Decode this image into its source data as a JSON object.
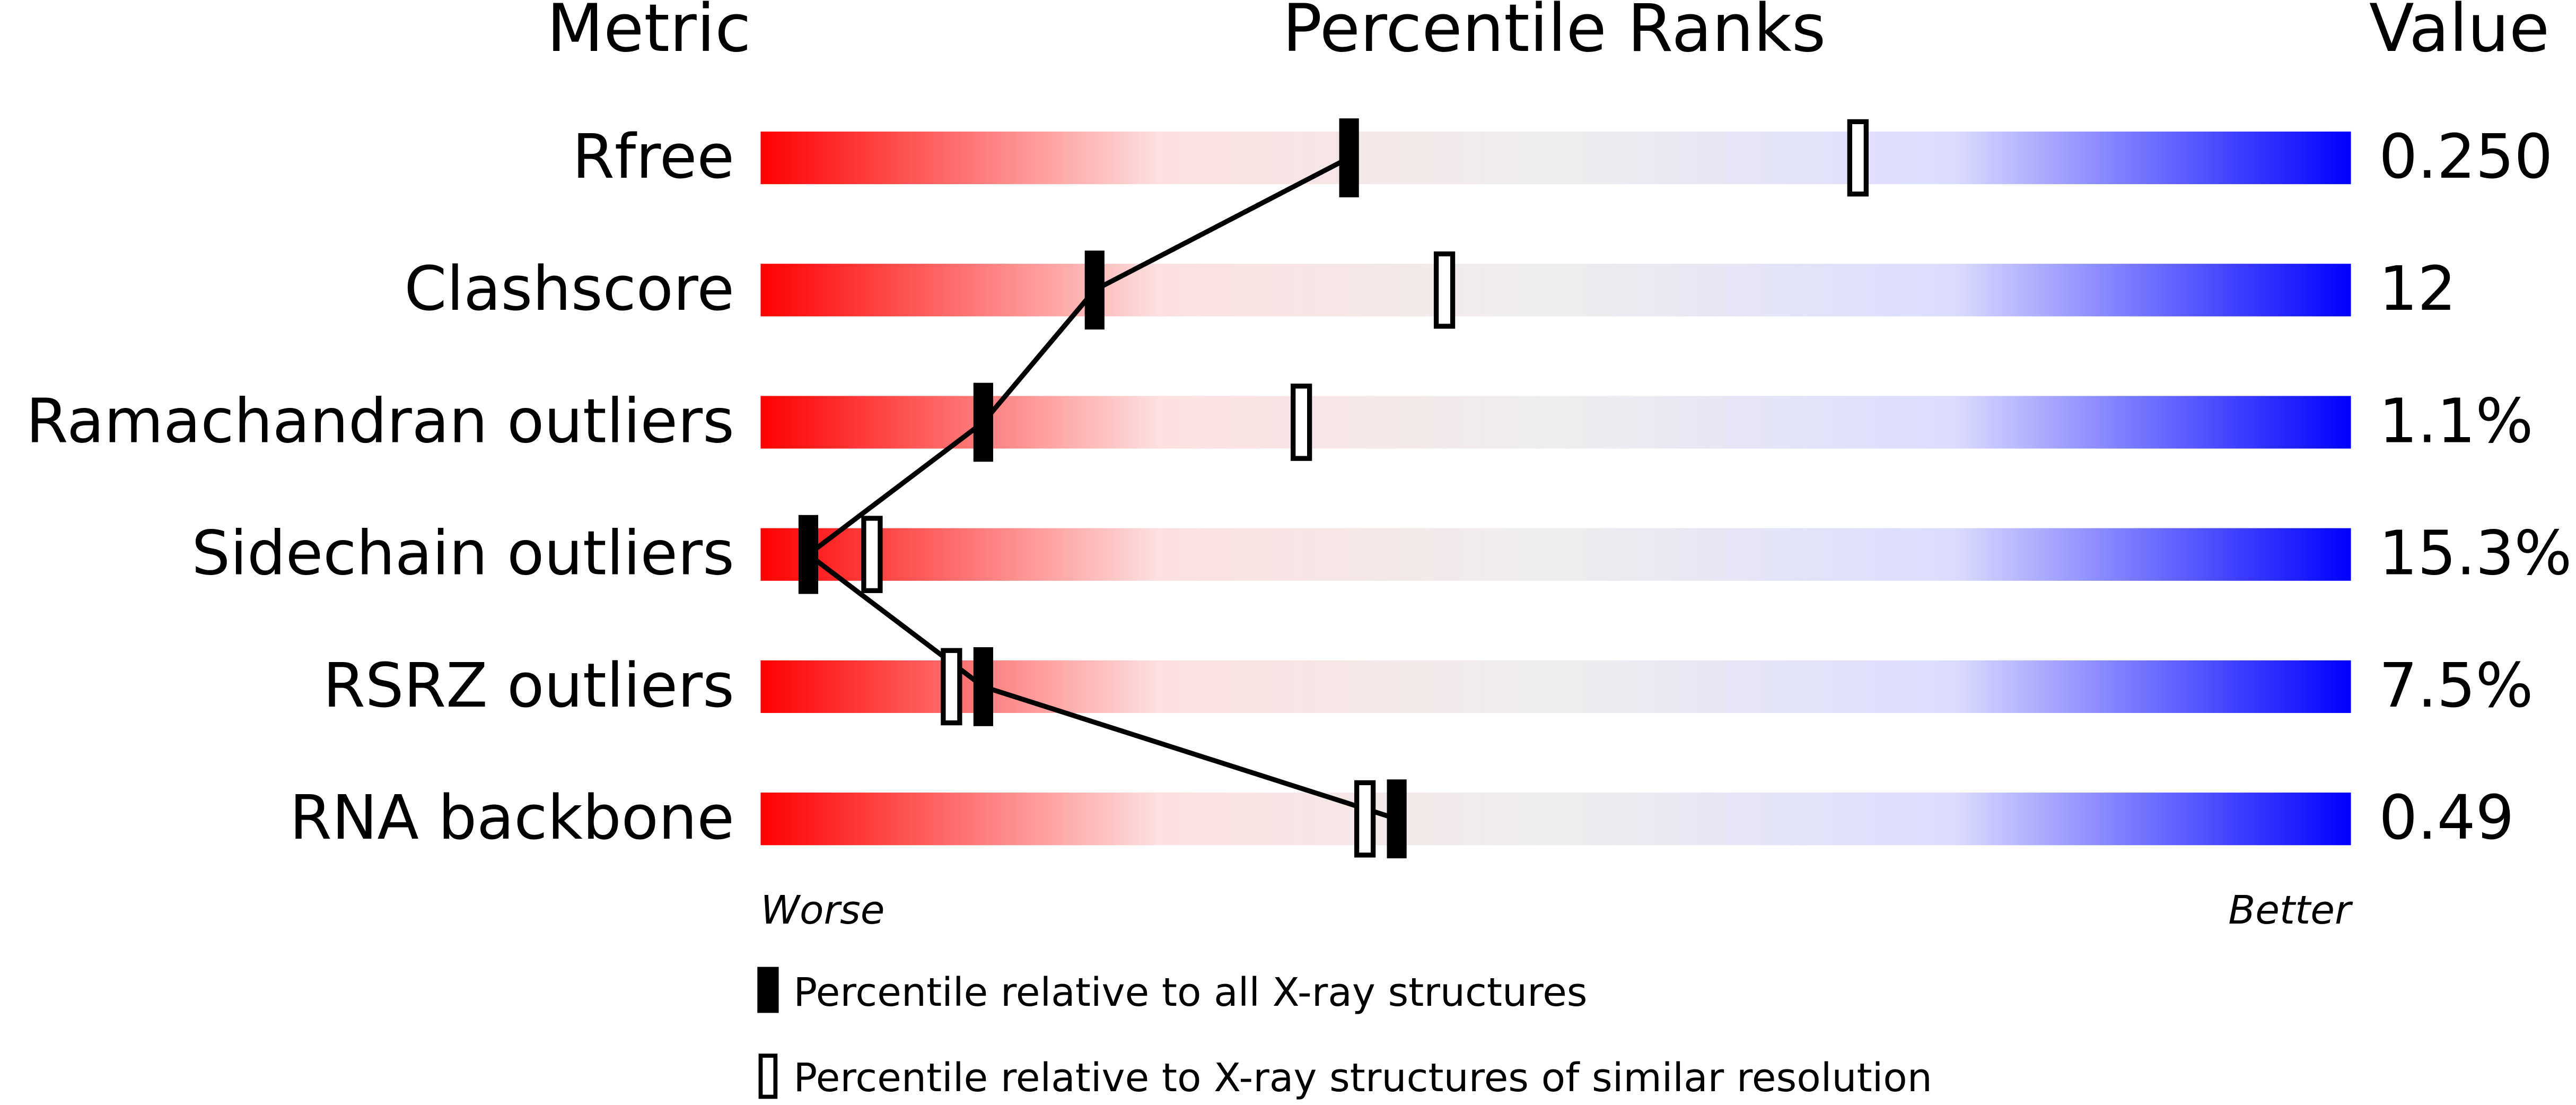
{
  "chart_data": {
    "type": "percentile_slider",
    "metric_header": "Metric",
    "title": "Percentile Ranks",
    "value_header": "Value",
    "categories": [
      "Rfree",
      "Clashscore",
      "Ramachandran outliers",
      "Sidechain outliers",
      "RSRZ outliers",
      "RNA backbone"
    ],
    "value_labels": [
      "0.250",
      "12",
      "1.1%",
      "15.3%",
      "7.5%",
      "0.49"
    ],
    "xlim": [
      0,
      100
    ],
    "worse_label": "Worse",
    "better_label": "Better",
    "gradient": [
      "#ff0000",
      "#fde0e0",
      "#eeeeee",
      "#dcdcff",
      "#0000ff"
    ],
    "series": [
      {
        "name": "Percentile relative to all X-ray structures",
        "style": "filled",
        "color": "#000000",
        "values": [
          37,
          21,
          14,
          3,
          14,
          40
        ]
      },
      {
        "name": "Percentile relative to X-ray structures of similar resolution",
        "style": "open",
        "color": "#000000",
        "values": [
          69,
          43,
          34,
          7,
          12,
          38
        ]
      }
    ]
  }
}
